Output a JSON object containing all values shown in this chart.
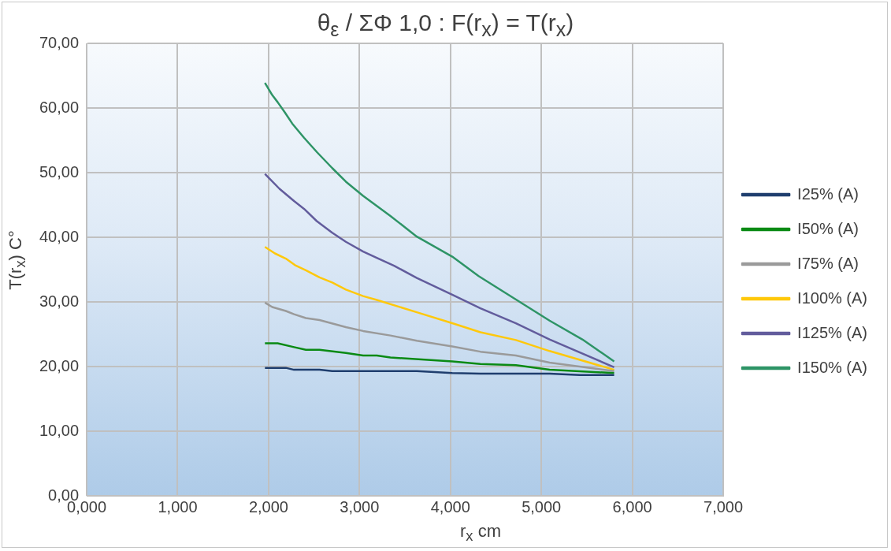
{
  "chart_data": {
    "type": "line",
    "title": "θ$_{ε}$ / ΣΦ 1,0 : F(r$_{x}$) = T(r$_{x}$)",
    "xlabel": "r$_{x}$ cm",
    "ylabel": "T(r$_{x}$) C°",
    "xlim": [
      0,
      7
    ],
    "xticks": [
      {
        "value": 0,
        "label": "0,000"
      },
      {
        "value": 1,
        "label": "1,000"
      },
      {
        "value": 2,
        "label": "2,000"
      },
      {
        "value": 3,
        "label": "3,000"
      },
      {
        "value": 4,
        "label": "4,000"
      },
      {
        "value": 5,
        "label": "5,000"
      },
      {
        "value": 6,
        "label": "6,000"
      },
      {
        "value": 7,
        "label": "7,000"
      }
    ],
    "ylim": [
      0,
      70
    ],
    "yticks": [
      {
        "value": 0,
        "label": "0,00"
      },
      {
        "value": 10,
        "label": "10,00"
      },
      {
        "value": 20,
        "label": "20,00"
      },
      {
        "value": 30,
        "label": "30,00"
      },
      {
        "value": 40,
        "label": "40,00"
      },
      {
        "value": 50,
        "label": "50,00"
      },
      {
        "value": 60,
        "label": "60,00"
      },
      {
        "value": 70,
        "label": "70,00"
      }
    ],
    "grid": true,
    "legend": "right",
    "marker": "none",
    "line_style": "solid",
    "series": [
      {
        "name": "I25% (A)",
        "color": "#1f3e6e",
        "x": [
          1.96,
          2.19,
          2.28,
          2.56,
          2.7,
          3.63,
          4.02,
          4.33,
          5.09,
          5.42,
          5.8
        ],
        "values": [
          19.8,
          19.8,
          19.5,
          19.5,
          19.3,
          19.3,
          19.0,
          18.9,
          18.9,
          18.7,
          18.7
        ]
      },
      {
        "name": "I50% (A)",
        "color": "#0a8a14",
        "x": [
          1.96,
          2.1,
          2.28,
          2.41,
          2.56,
          2.85,
          3.04,
          3.19,
          3.34,
          4.02,
          4.33,
          4.72,
          5.09,
          5.8
        ],
        "values": [
          23.6,
          23.6,
          23.0,
          22.6,
          22.6,
          22.1,
          21.7,
          21.7,
          21.4,
          20.8,
          20.4,
          20.2,
          19.5,
          19.0
        ]
      },
      {
        "name": "I75% (A)",
        "color": "#9a9a9a",
        "x": [
          1.96,
          2.04,
          2.19,
          2.28,
          2.41,
          2.56,
          2.85,
          3.04,
          3.34,
          3.63,
          4.02,
          4.33,
          4.72,
          5.09,
          5.8
        ],
        "values": [
          29.9,
          29.2,
          28.6,
          28.1,
          27.5,
          27.2,
          26.1,
          25.5,
          24.8,
          24.0,
          23.1,
          22.3,
          21.7,
          20.6,
          19.3
        ]
      },
      {
        "name": "I100% (A)",
        "color": "#ffc80a",
        "x": [
          1.96,
          2.07,
          2.19,
          2.29,
          2.41,
          2.56,
          2.7,
          2.85,
          3.04,
          3.19,
          3.63,
          4.02,
          4.33,
          4.72,
          5.09,
          5.8
        ],
        "values": [
          38.5,
          37.5,
          36.7,
          35.7,
          34.9,
          33.8,
          33.0,
          31.9,
          30.9,
          30.3,
          28.4,
          26.7,
          25.3,
          24.1,
          22.4,
          19.5
        ]
      },
      {
        "name": "I125% (A)",
        "color": "#625c9c",
        "x": [
          1.96,
          2.12,
          2.28,
          2.39,
          2.53,
          2.7,
          2.85,
          3.04,
          3.19,
          3.38,
          3.63,
          4.02,
          4.33,
          4.72,
          5.09,
          5.8
        ],
        "values": [
          49.8,
          47.5,
          45.6,
          44.4,
          42.5,
          40.7,
          39.3,
          37.8,
          36.8,
          35.6,
          33.7,
          31.1,
          29.0,
          26.7,
          24.2,
          19.9
        ]
      },
      {
        "name": "I150% (A)",
        "color": "#2e9466",
        "x": [
          1.96,
          2.04,
          2.1,
          2.18,
          2.26,
          2.39,
          2.53,
          2.7,
          2.85,
          3.04,
          3.34,
          3.63,
          4.02,
          4.31,
          5.09,
          5.45,
          5.8
        ],
        "values": [
          63.9,
          62.0,
          60.9,
          59.3,
          57.6,
          55.4,
          53.2,
          50.7,
          48.6,
          46.4,
          43.3,
          40.1,
          37.0,
          34.0,
          27.1,
          24.2,
          20.8
        ]
      }
    ]
  }
}
